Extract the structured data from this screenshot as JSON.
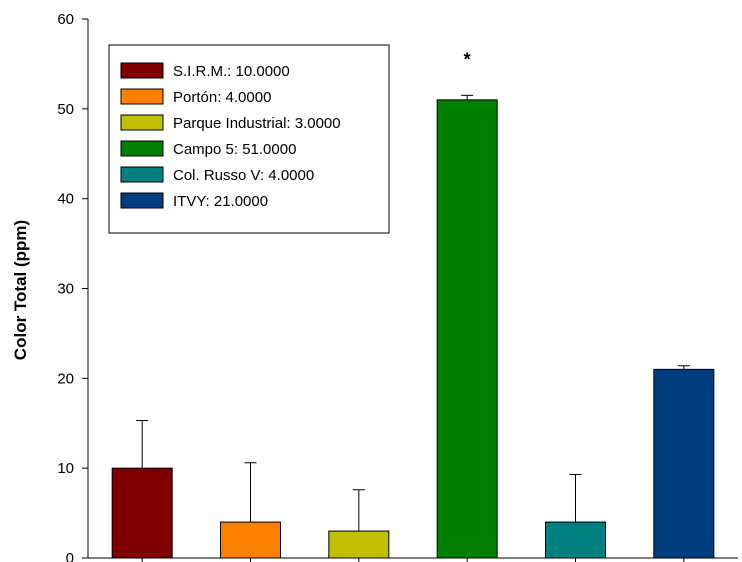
{
  "chart_data": {
    "type": "bar",
    "ylabel": "Color Total (ppm)",
    "ylim": [
      0,
      60
    ],
    "yticks": [
      0,
      10,
      20,
      30,
      40,
      50,
      60
    ],
    "grid": false,
    "legend_placement": "top-left",
    "categories": [
      "S.I.R.M.",
      "Portón",
      "Parque Industrial",
      "Campo 5",
      "Col. Russo V",
      "ITVY"
    ],
    "values": [
      10,
      4,
      3,
      51,
      4,
      21
    ],
    "errors": [
      5.3,
      6.6,
      4.6,
      0.5,
      5.3,
      0.4
    ],
    "colors": [
      "#800000",
      "#ff8000",
      "#c0c000",
      "#008000",
      "#008080",
      "#003e80"
    ],
    "legend": [
      "S.I.R.M.: 10.0000",
      "Portón: 4.0000",
      "Parque Industrial: 3.0000",
      "Campo 5: 51.0000",
      "Col. Russo V: 4.0000",
      "ITVY: 21.0000"
    ],
    "annotations": [
      {
        "category": "Campo 5",
        "text": "*"
      }
    ]
  }
}
